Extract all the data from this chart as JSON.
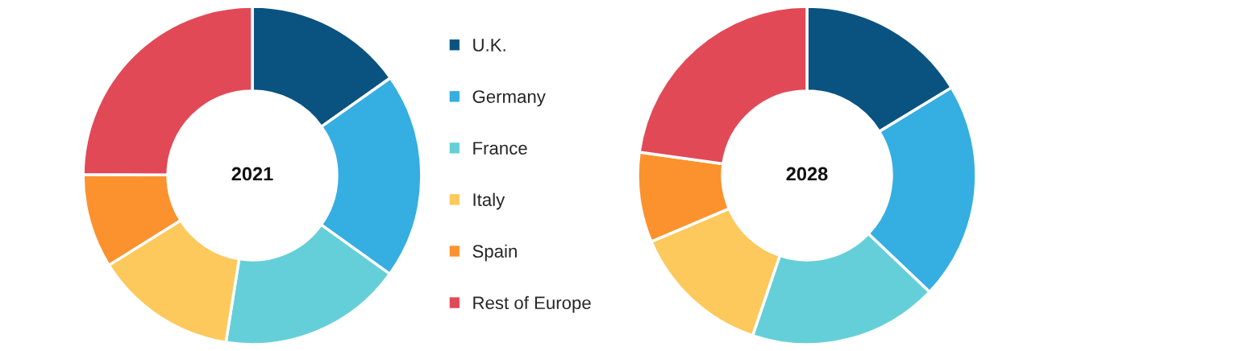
{
  "chart_data": [
    {
      "type": "donut",
      "title": "2021",
      "categories": [
        "U.K.",
        "Germany",
        "France",
        "Italy",
        "Spain",
        "Rest of Europe"
      ],
      "values": [
        15.2,
        19.7,
        17.6,
        13.6,
        9.0,
        24.9
      ],
      "colors": [
        "#0a5380",
        "#35aee2",
        "#65cfd9",
        "#fdc95c",
        "#fb922e",
        "#e24957"
      ],
      "legend": "right"
    },
    {
      "type": "donut",
      "title": "2028",
      "categories": [
        null,
        null,
        null,
        null,
        null,
        null
      ],
      "values": [
        16.3,
        20.8,
        18.1,
        13.4,
        8.6,
        22.8
      ],
      "colors": [
        "#0a5380",
        "#35aee2",
        "#65cfd9",
        "#fdc95c",
        "#fb922e",
        "#e24957"
      ]
    }
  ]
}
